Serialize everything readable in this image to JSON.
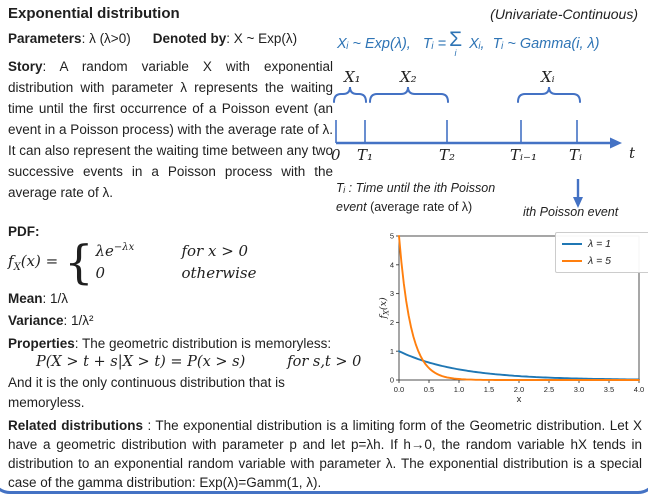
{
  "header": {
    "title": "Exponential distribution",
    "tag": "(Univariate-Continuous)"
  },
  "params": {
    "label": "Parameters",
    "value": ": λ (λ>0)",
    "denoted_label": "Denoted by",
    "denoted_value": ": X ~ Exp(λ)"
  },
  "story": {
    "label": "Story",
    "text": ": A random variable X with exponential distribution with parameter λ represents the waiting time until the first occurrence of a Poisson event (an event in a Poisson process) with the average rate of λ. It can also represent the waiting time between any two successive events in a Poisson process with the average rate of λ."
  },
  "pdf": {
    "label": "PDF:",
    "lhs_f": "f",
    "lhs_sub": "X",
    "lhs_rest": "(x) =",
    "brace": "{",
    "case1_base": "λe",
    "case1_exp": "−λx",
    "case1_cond": "for x > 0",
    "case2_base": "0",
    "case2_cond": "otherwise"
  },
  "moments": {
    "mean_label": "Mean",
    "mean_value": ": 1/λ",
    "var_label": "Variance",
    "var_value": ": 1/λ²"
  },
  "properties": {
    "label": "Properties",
    "intro": ": The geometric distribution is memoryless:",
    "formula": "P(X > t + s|X > t) = P(x > s)",
    "condition": "for s,t > 0",
    "outro": "And it is the only continuous distribution that is memoryless."
  },
  "related": {
    "label": "Related distributions",
    "text": " : The exponential distribution is a limiting form of the Geometric distribution. Let X have a geometric distribution with parameter p and let p=λh. If h→0, the random variable hX tends in distribution to an exponential random variable with parameter λ. The exponential distribution is a special case of the gamma distribution: Exp(λ)=Gamm(1, λ)."
  },
  "diagram": {
    "formula_part1": "Xᵢ ~ Exp(λ),   Tᵢ =",
    "formula_sigma": "Σ",
    "formula_sigma_sub": "i",
    "formula_part2": " Xᵢ,  Tᵢ ~ Gamma(i, λ)",
    "interval_labels": [
      "X₁",
      "X₂",
      "Xᵢ"
    ],
    "tick_labels": [
      "0",
      "T₁",
      "T₂",
      "Tᵢ₋₁",
      "Tᵢ"
    ],
    "axis_label": "t",
    "note_line1": "Tᵢ : Time until the ith Poisson",
    "note_line2_italic": "event",
    "note_line2_normal": " (average rate of λ)",
    "event_label": "ith Poisson event"
  },
  "chart_data": {
    "type": "line",
    "title": "",
    "xlabel": "x",
    "ylabel": "f_X(x)",
    "ylabel_parts": {
      "base": "f",
      "sub": "X",
      "rest": "(x)"
    },
    "xlim": [
      0,
      4
    ],
    "ylim": [
      0,
      5
    ],
    "xticks": [
      "0.0",
      "0.5",
      "1.0",
      "1.5",
      "2.0",
      "2.5",
      "3.0",
      "3.5",
      "4.0"
    ],
    "yticks": [
      "0",
      "1",
      "2",
      "3",
      "4",
      "5"
    ],
    "grid": false,
    "legend_position": "upper right",
    "series": [
      {
        "name": "λ = 1",
        "lambda": 1,
        "color": "#1f77b4",
        "formula": "y = λ·e^(−λx)",
        "sample_points": {
          "x": [
            0,
            0.5,
            1,
            2,
            3,
            4
          ],
          "y": [
            1.0,
            0.607,
            0.368,
            0.135,
            0.05,
            0.018
          ]
        }
      },
      {
        "name": "λ = 5",
        "lambda": 5,
        "color": "#ff7f0e",
        "formula": "y = λ·e^(−λx)",
        "sample_points": {
          "x": [
            0,
            0.2,
            0.4,
            0.6,
            1,
            2
          ],
          "y": [
            5.0,
            1.839,
            0.677,
            0.249,
            0.034,
            0.0
          ]
        }
      }
    ]
  },
  "colors": {
    "formula_blue": "#2E74B5",
    "diagram_blue": "#4472C4",
    "text": "#1f1f1f"
  }
}
